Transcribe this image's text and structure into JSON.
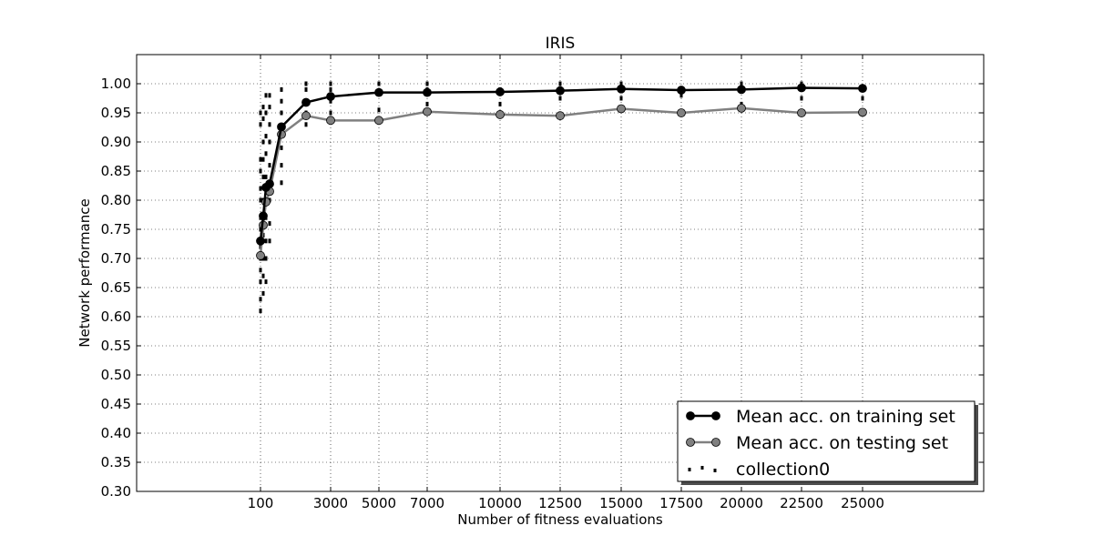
{
  "chart_data": {
    "type": "line",
    "title": "IRIS",
    "xlabel": "Number of fitness evaluations",
    "ylabel": "Network performance",
    "ylim": [
      0.3,
      1.05
    ],
    "grid": true,
    "legend_position": "bottom-right",
    "x_tick_labels": [
      "100",
      "3000",
      "5000",
      "7000",
      "10000",
      "12500",
      "15000",
      "17500",
      "20000",
      "22500",
      "25000"
    ],
    "y_tick_labels": [
      "0.30",
      "0.35",
      "0.40",
      "0.45",
      "0.50",
      "0.55",
      "0.60",
      "0.65",
      "0.70",
      "0.75",
      "0.80",
      "0.85",
      "0.90",
      "0.95",
      "1.00"
    ],
    "x_categories": [
      "100",
      "~",
      "~",
      "~",
      "~",
      "~",
      "3000",
      "5000",
      "7000",
      "10000",
      "12500",
      "15000",
      "17500",
      "20000",
      "22500",
      "25000"
    ],
    "series": [
      {
        "name": "Mean acc. on training set",
        "color": "#000000",
        "marker_color": "#000000",
        "values": [
          0.73,
          0.773,
          0.822,
          0.828,
          0.926,
          0.968,
          0.978,
          0.985,
          0.985,
          0.986,
          0.988,
          0.991,
          0.989,
          0.99,
          0.993,
          0.992
        ]
      },
      {
        "name": "Mean acc. on testing set",
        "color": "#808080",
        "marker_color": "#808080",
        "values": [
          0.705,
          0.757,
          0.797,
          0.815,
          0.913,
          0.945,
          0.937,
          0.937,
          0.952,
          0.947,
          0.945,
          0.957,
          0.95,
          0.958,
          0.95,
          0.951
        ]
      },
      {
        "name": "collection0",
        "color": "#000000",
        "style": "scatter-dotted",
        "points": [
          [
            0,
            [
              0.61,
              0.63,
              0.66,
              0.68,
              0.7,
              0.72,
              0.75,
              0.77,
              0.8,
              0.82,
              0.85,
              0.87,
              0.93,
              0.95
            ]
          ],
          [
            1,
            [
              0.64,
              0.67,
              0.7,
              0.74,
              0.77,
              0.8,
              0.84,
              0.87,
              0.9,
              0.94,
              0.96
            ]
          ],
          [
            2,
            [
              0.66,
              0.7,
              0.73,
              0.77,
              0.8,
              0.84,
              0.88,
              0.91,
              0.95,
              0.98
            ]
          ],
          [
            3,
            [
              0.73,
              0.76,
              0.8,
              0.83,
              0.86,
              0.9,
              0.93,
              0.96,
              0.98
            ]
          ],
          [
            4,
            [
              0.83,
              0.86,
              0.89,
              0.92,
              0.95,
              0.97,
              0.99
            ]
          ],
          [
            5,
            [
              0.93,
              0.95,
              0.97,
              0.99,
              1.0
            ]
          ],
          [
            6,
            [
              0.95,
              0.97,
              0.99,
              1.0
            ]
          ],
          [
            7,
            [
              0.955,
              0.985,
              1.0
            ]
          ],
          [
            8,
            [
              0.965,
              0.99,
              1.0
            ]
          ],
          [
            9,
            [
              0.965,
              0.99
            ]
          ],
          [
            10,
            [
              0.975,
              0.99,
              1.0
            ]
          ],
          [
            11,
            [
              0.975,
              0.99,
              1.0
            ]
          ],
          [
            12,
            [
              0.98,
              0.99
            ]
          ],
          [
            13,
            [
              0.965,
              0.99,
              1.0
            ]
          ],
          [
            14,
            [
              0.975,
              0.99,
              1.0
            ]
          ],
          [
            15,
            [
              0.975,
              0.99
            ]
          ]
        ]
      }
    ]
  }
}
